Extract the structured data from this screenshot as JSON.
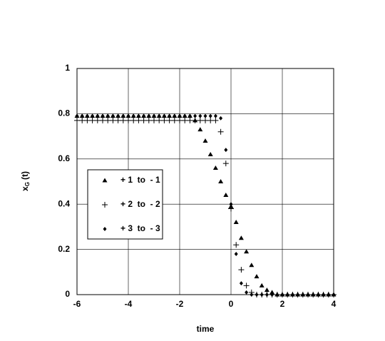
{
  "chart_data": {
    "type": "scatter",
    "xlabel": "time",
    "ylabel": "x",
    "ylabel_sub": "G",
    "ylabel_arg": "(t)",
    "xlim": [
      -6,
      4
    ],
    "ylim": [
      0,
      1
    ],
    "xticks": [
      -6,
      -4,
      -2,
      0,
      2,
      4
    ],
    "yticks": [
      0,
      0.2,
      0.4,
      0.6,
      0.8,
      1
    ],
    "grid": true,
    "legend_position": "left",
    "x": [
      -6,
      -5.8,
      -5.6,
      -5.4,
      -5.2,
      -5,
      -4.8,
      -4.6,
      -4.4,
      -4.2,
      -4,
      -3.8,
      -3.6,
      -3.4,
      -3.2,
      -3,
      -2.8,
      -2.6,
      -2.4,
      -2.2,
      -2,
      -1.8,
      -1.6,
      -1.4,
      -1.2,
      -1,
      -0.8,
      -0.6,
      -0.4,
      -0.2,
      0,
      0.2,
      0.4,
      0.6,
      0.8,
      1,
      1.2,
      1.4,
      1.6,
      1.8,
      2,
      2.2,
      2.4,
      2.6,
      2.8,
      3,
      3.2,
      3.4,
      3.6,
      3.8,
      4
    ],
    "series": [
      {
        "name": "+ 1  to  - 1",
        "marker": "triangle",
        "color": "#000000",
        "values": [
          0.79,
          0.79,
          0.79,
          0.79,
          0.79,
          0.79,
          0.79,
          0.79,
          0.79,
          0.79,
          0.79,
          0.79,
          0.79,
          0.79,
          0.79,
          0.79,
          0.79,
          0.79,
          0.79,
          0.79,
          0.79,
          0.79,
          0.79,
          0.77,
          0.73,
          0.68,
          0.62,
          0.56,
          0.5,
          0.44,
          0.39,
          0.32,
          0.25,
          0.19,
          0.13,
          0.08,
          0.04,
          0.02,
          0.01,
          0,
          0,
          0,
          0,
          0,
          0,
          0,
          0,
          0,
          0,
          0,
          0
        ]
      },
      {
        "name": "+ 2  to  - 2",
        "marker": "plus",
        "color": "#000000",
        "values": [
          0.77,
          0.77,
          0.77,
          0.77,
          0.77,
          0.77,
          0.77,
          0.77,
          0.77,
          0.77,
          0.77,
          0.77,
          0.77,
          0.77,
          0.77,
          0.77,
          0.77,
          0.77,
          0.77,
          0.77,
          0.77,
          0.77,
          0.77,
          0.77,
          0.77,
          0.77,
          0.77,
          0.77,
          0.72,
          0.58,
          0.38,
          0.22,
          0.11,
          0.04,
          0.01,
          0,
          0,
          0,
          0,
          0,
          0,
          0,
          0,
          0,
          0,
          0,
          0,
          0,
          0,
          0,
          0
        ]
      },
      {
        "name": "+ 3  to  - 3",
        "marker": "diamond",
        "color": "#000000",
        "values": [
          0.79,
          0.79,
          0.79,
          0.79,
          0.79,
          0.79,
          0.79,
          0.79,
          0.79,
          0.79,
          0.79,
          0.79,
          0.79,
          0.79,
          0.79,
          0.79,
          0.79,
          0.79,
          0.79,
          0.79,
          0.79,
          0.79,
          0.79,
          0.79,
          0.79,
          0.79,
          0.79,
          0.79,
          0.78,
          0.64,
          0.4,
          0.18,
          0.05,
          0.01,
          0,
          0,
          0,
          0,
          0,
          0,
          0,
          0,
          0,
          0,
          0,
          0,
          0,
          0,
          0,
          0,
          0
        ]
      }
    ]
  }
}
